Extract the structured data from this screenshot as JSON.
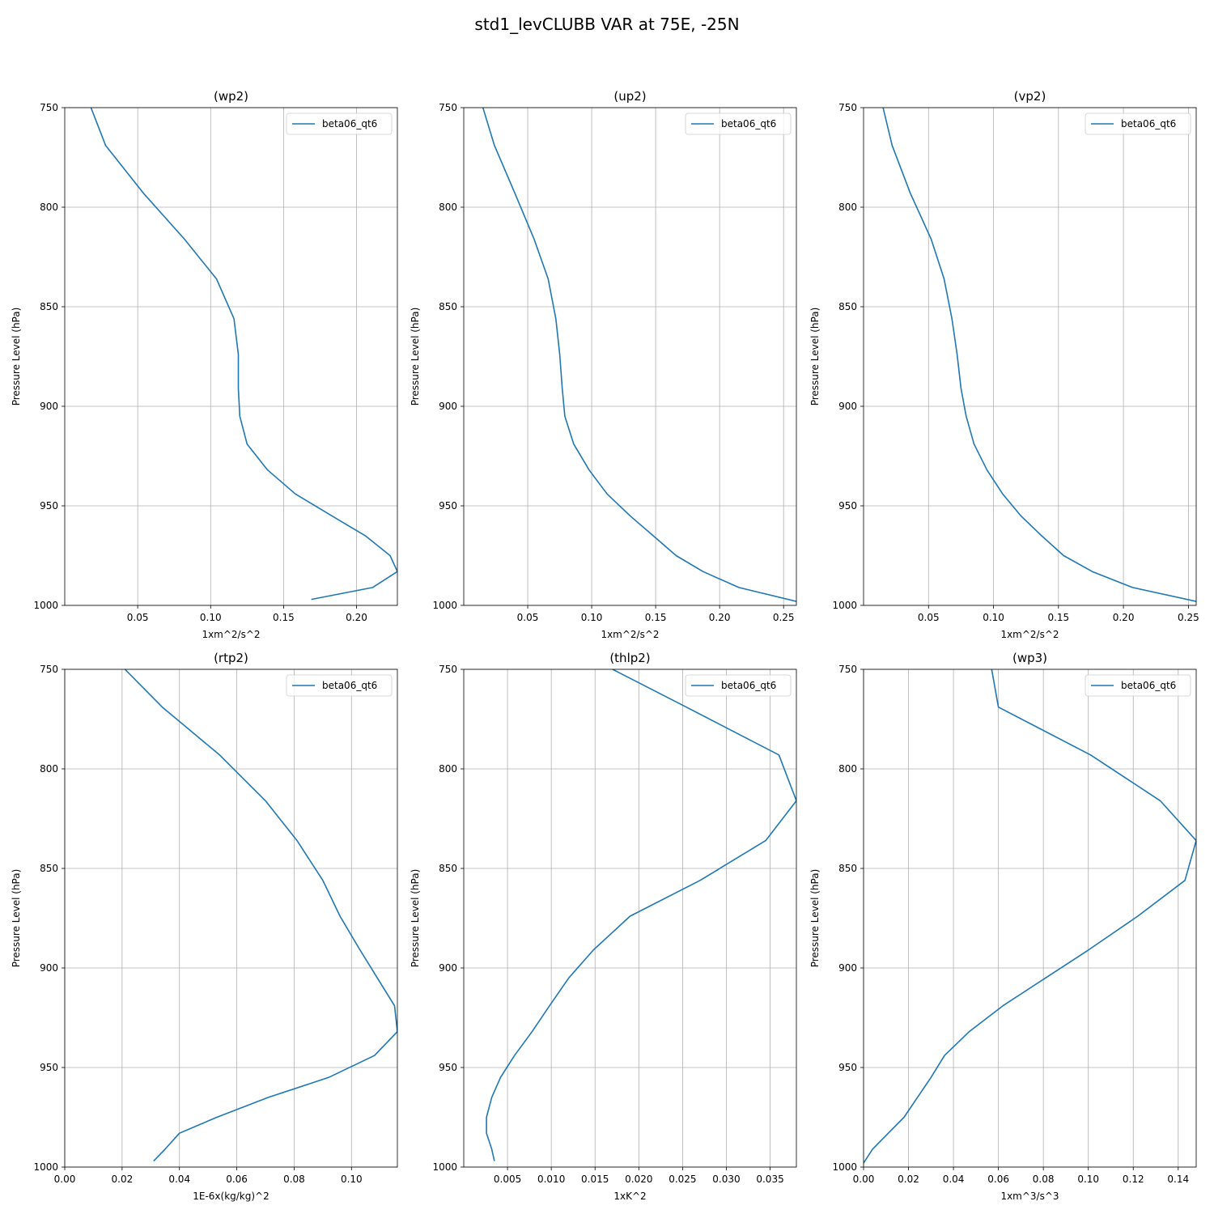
{
  "figure": {
    "title": "std1_levCLUBB VAR at 75E, -25N"
  },
  "chart_data": [
    {
      "type": "line",
      "title": "(wp2)",
      "xlabel": "1xm^2/s^2",
      "ylabel": "Pressure Level (hPa)",
      "xlim": [
        0.0,
        0.228
      ],
      "ylim": [
        1000,
        750
      ],
      "xticks": [
        "0.05",
        "0.10",
        "0.15",
        "0.20"
      ],
      "xtick_values": [
        0.05,
        0.1,
        0.15,
        0.2
      ],
      "yticks": [
        750,
        800,
        850,
        900,
        950,
        1000
      ],
      "grid": true,
      "legend_position": "top-right",
      "series": [
        {
          "name": "beta06_qt6",
          "color": "#1f77b4",
          "x": [
            0.018,
            0.028,
            0.054,
            0.082,
            0.104,
            0.116,
            0.119,
            0.119,
            0.12,
            0.125,
            0.139,
            0.158,
            0.183,
            0.206,
            0.223,
            0.228,
            0.211,
            0.169
          ],
          "y": [
            750,
            769,
            793,
            816,
            836,
            856,
            874,
            891,
            905,
            919,
            932,
            944,
            955,
            965,
            975,
            983,
            991,
            997
          ]
        }
      ]
    },
    {
      "type": "line",
      "title": "(up2)",
      "xlabel": "1xm^2/s^2",
      "ylabel": "Pressure Level (hPa)",
      "xlim": [
        0.0,
        0.26
      ],
      "ylim": [
        1000,
        750
      ],
      "xticks": [
        "0.05",
        "0.10",
        "0.15",
        "0.20",
        "0.25"
      ],
      "xtick_values": [
        0.05,
        0.1,
        0.15,
        0.2,
        0.25
      ],
      "yticks": [
        750,
        800,
        850,
        900,
        950,
        1000
      ],
      "grid": true,
      "legend_position": "top-right",
      "series": [
        {
          "name": "beta06_qt6",
          "color": "#1f77b4",
          "x": [
            0.015,
            0.024,
            0.04,
            0.055,
            0.066,
            0.072,
            0.075,
            0.077,
            0.079,
            0.086,
            0.098,
            0.112,
            0.13,
            0.148,
            0.166,
            0.187,
            0.215,
            0.26
          ],
          "y": [
            750,
            769,
            793,
            816,
            836,
            856,
            874,
            891,
            905,
            919,
            932,
            944,
            955,
            965,
            975,
            983,
            991,
            998
          ]
        }
      ]
    },
    {
      "type": "line",
      "title": "(vp2)",
      "xlabel": "1xm^2/s^2",
      "ylabel": "Pressure Level (hPa)",
      "xlim": [
        0.0,
        0.256
      ],
      "ylim": [
        1000,
        750
      ],
      "xticks": [
        "0.05",
        "0.10",
        "0.15",
        "0.20",
        "0.25"
      ],
      "xtick_values": [
        0.05,
        0.1,
        0.15,
        0.2,
        0.25
      ],
      "yticks": [
        750,
        800,
        850,
        900,
        950,
        1000
      ],
      "grid": true,
      "legend_position": "top-right",
      "series": [
        {
          "name": "beta06_qt6",
          "color": "#1f77b4",
          "x": [
            0.015,
            0.022,
            0.036,
            0.052,
            0.062,
            0.068,
            0.072,
            0.075,
            0.079,
            0.085,
            0.095,
            0.107,
            0.121,
            0.137,
            0.154,
            0.176,
            0.207,
            0.256
          ],
          "y": [
            750,
            769,
            793,
            816,
            836,
            856,
            874,
            891,
            905,
            919,
            932,
            944,
            955,
            965,
            975,
            983,
            991,
            998
          ]
        }
      ]
    },
    {
      "type": "line",
      "title": "(rtp2)",
      "xlabel": "1E-6x(kg/kg)^2",
      "ylabel": "Pressure Level (hPa)",
      "xlim": [
        0.0,
        0.116
      ],
      "ylim": [
        1000,
        750
      ],
      "xticks": [
        "0.00",
        "0.02",
        "0.04",
        "0.06",
        "0.08",
        "0.10"
      ],
      "xtick_values": [
        0.0,
        0.02,
        0.04,
        0.06,
        0.08,
        0.1
      ],
      "yticks": [
        750,
        800,
        850,
        900,
        950,
        1000
      ],
      "grid": true,
      "legend_position": "top-right",
      "series": [
        {
          "name": "beta06_qt6",
          "color": "#1f77b4",
          "x": [
            0.021,
            0.034,
            0.054,
            0.07,
            0.081,
            0.09,
            0.096,
            0.103,
            0.109,
            0.115,
            0.116,
            0.108,
            0.092,
            0.071,
            0.053,
            0.04,
            0.035,
            0.031
          ],
          "y": [
            750,
            769,
            793,
            816,
            836,
            856,
            874,
            891,
            905,
            919,
            932,
            944,
            955,
            965,
            975,
            983,
            991,
            997
          ]
        }
      ]
    },
    {
      "type": "line",
      "title": "(thlp2)",
      "xlabel": "1xK^2",
      "ylabel": "Pressure Level (hPa)",
      "xlim": [
        0.0,
        0.038
      ],
      "ylim": [
        1000,
        750
      ],
      "xticks": [
        "0.005",
        "0.010",
        "0.015",
        "0.020",
        "0.025",
        "0.030",
        "0.035"
      ],
      "xtick_values": [
        0.005,
        0.01,
        0.015,
        0.02,
        0.025,
        0.03,
        0.035
      ],
      "yticks": [
        750,
        800,
        850,
        900,
        950,
        1000
      ],
      "grid": true,
      "legend_position": "top-right",
      "series": [
        {
          "name": "beta06_qt6",
          "color": "#1f77b4",
          "x": [
            0.017,
            0.025,
            0.036,
            0.038,
            0.0345,
            0.027,
            0.019,
            0.0148,
            0.012,
            0.0098,
            0.0078,
            0.0058,
            0.0042,
            0.0032,
            0.0026,
            0.0026,
            0.0032,
            0.0035
          ],
          "y": [
            750,
            768,
            793,
            816,
            836,
            856,
            874,
            891,
            905,
            919,
            932,
            944,
            955,
            965,
            975,
            983,
            991,
            997
          ]
        }
      ]
    },
    {
      "type": "line",
      "title": "(wp3)",
      "xlabel": "1xm^3/s^3",
      "ylabel": "Pressure Level (hPa)",
      "xlim": [
        0.0,
        0.148
      ],
      "ylim": [
        1000,
        750
      ],
      "xticks": [
        "0.00",
        "0.02",
        "0.04",
        "0.06",
        "0.08",
        "0.10",
        "0.12",
        "0.14"
      ],
      "xtick_values": [
        0.0,
        0.02,
        0.04,
        0.06,
        0.08,
        0.1,
        0.12,
        0.14
      ],
      "yticks": [
        750,
        800,
        850,
        900,
        950,
        1000
      ],
      "grid": true,
      "legend_position": "top-right",
      "series": [
        {
          "name": "beta06_qt6",
          "color": "#1f77b4",
          "x": [
            0.057,
            0.06,
            0.101,
            0.132,
            0.148,
            0.143,
            0.122,
            0.1,
            0.081,
            0.062,
            0.047,
            0.036,
            0.03,
            0.024,
            0.018,
            0.011,
            0.004,
            0.0
          ],
          "y": [
            750,
            769,
            793,
            816,
            836,
            856,
            874,
            891,
            905,
            919,
            932,
            944,
            955,
            965,
            975,
            983,
            991,
            998
          ]
        }
      ]
    }
  ]
}
